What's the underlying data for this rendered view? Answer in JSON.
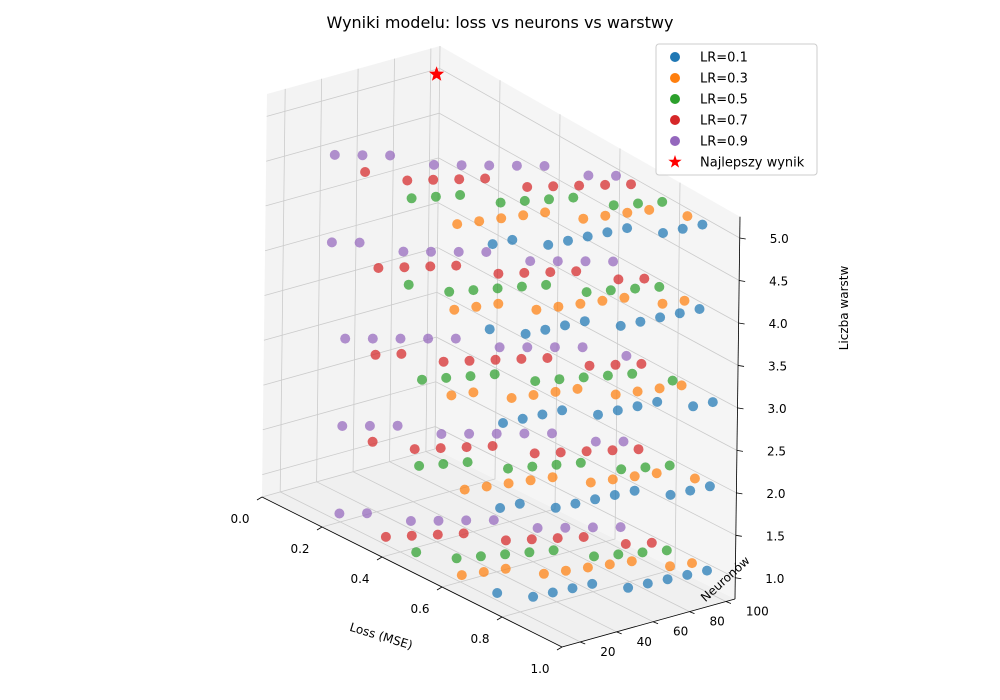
{
  "chart_data": {
    "type": "scatter",
    "projection": "3d",
    "title": "Wyniki modelu: loss vs neurons vs warstwy",
    "xlabel": "Loss (MSE)",
    "ylabel": "Neuronów",
    "zlabel": "Liczba warstw",
    "xlim": [
      0.0,
      1.0
    ],
    "ylim": [
      10,
      105
    ],
    "zlim": [
      0.75,
      5.25
    ],
    "xticks": [
      "0.0",
      "0.2",
      "0.4",
      "0.6",
      "0.8",
      "1.0"
    ],
    "yticks": [
      "20",
      "40",
      "60",
      "80",
      "100"
    ],
    "zticks": [
      "1.0",
      "1.5",
      "2.0",
      "2.5",
      "3.0",
      "3.5",
      "4.0",
      "4.5",
      "5.0"
    ],
    "grid": true,
    "legend_position": "top-right",
    "series": [
      {
        "name": "LR=0.1",
        "color": "#1f77b4",
        "neurons_min": 10,
        "neurons_max": 100,
        "neurons_step": 10,
        "layers": [
          1,
          2,
          3,
          4,
          5
        ],
        "loss_range": [
          0.78,
          0.96
        ]
      },
      {
        "name": "LR=0.3",
        "color": "#ff7f0e",
        "neurons_min": 10,
        "neurons_max": 100,
        "neurons_step": 10,
        "layers": [
          1,
          2,
          3,
          4,
          5
        ],
        "loss_range": [
          0.62,
          0.88
        ]
      },
      {
        "name": "LR=0.5",
        "color": "#2ca02c",
        "neurons_min": 10,
        "neurons_max": 100,
        "neurons_step": 10,
        "layers": [
          1,
          2,
          3,
          4,
          5
        ],
        "loss_range": [
          0.48,
          0.82
        ]
      },
      {
        "name": "LR=0.7",
        "color": "#d62728",
        "neurons_min": 10,
        "neurons_max": 100,
        "neurons_step": 10,
        "layers": [
          1,
          2,
          3,
          4,
          5
        ],
        "loss_range": [
          0.34,
          0.74
        ]
      },
      {
        "name": "LR=0.9",
        "color": "#9467bd",
        "neurons_min": 10,
        "neurons_max": 100,
        "neurons_step": 10,
        "layers": [
          1,
          2,
          3,
          4,
          5
        ],
        "loss_range": [
          0.2,
          0.66
        ]
      }
    ],
    "best": {
      "name": "Najlepszy wynik",
      "color": "#ff0000",
      "loss": 0.02,
      "neurons": 100,
      "layers": 5,
      "marker": "star"
    }
  }
}
